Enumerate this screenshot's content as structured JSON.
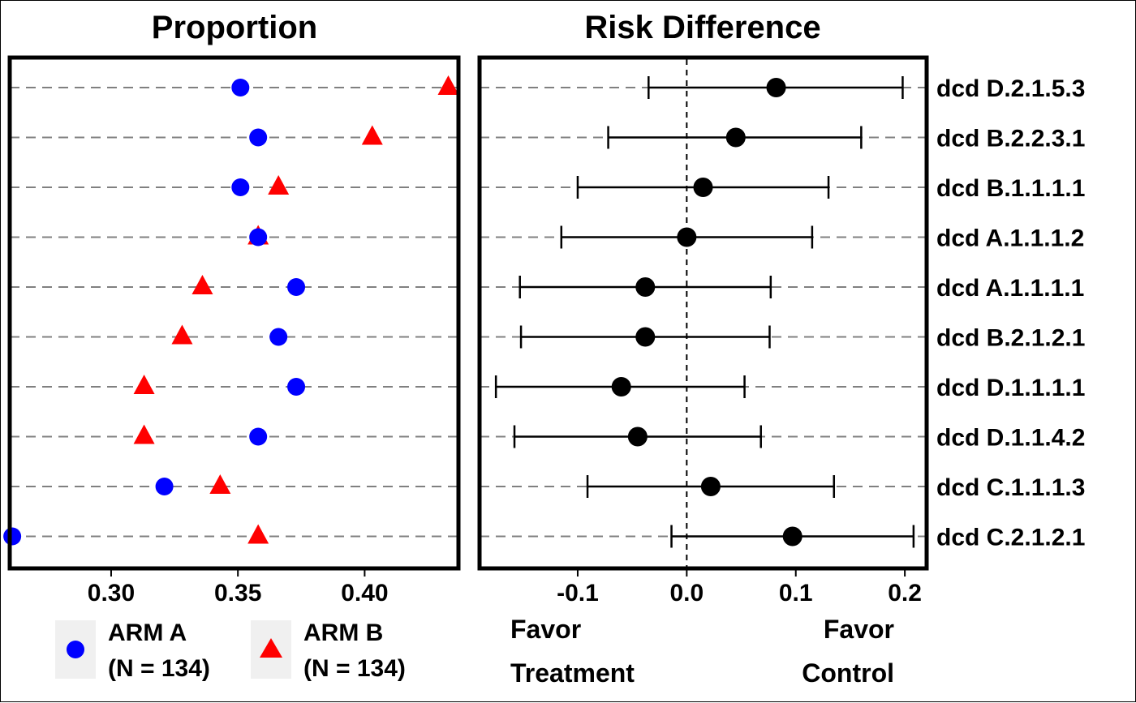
{
  "chart_data": [
    {
      "type": "scatter",
      "title": "Proportion",
      "xlim": [
        0.26,
        0.437
      ],
      "xticks": [
        "0.30",
        "0.35",
        "0.40"
      ],
      "xtick_values": [
        0.3,
        0.35,
        0.4
      ],
      "grid": "horizontal dashed",
      "categories": [
        "dcd D.2.1.5.3",
        "dcd B.2.2.3.1",
        "dcd B.1.1.1.1",
        "dcd A.1.1.1.2",
        "dcd A.1.1.1.1",
        "dcd B.2.1.2.1",
        "dcd D.1.1.1.1",
        "dcd D.1.1.4.2",
        "dcd C.1.1.1.3",
        "dcd C.2.1.2.1"
      ],
      "series": [
        {
          "name": "ARM A\n(N = 134)",
          "marker": "circle",
          "color": "#0000FF",
          "values": [
            0.351,
            0.358,
            0.351,
            0.358,
            0.373,
            0.366,
            0.373,
            0.358,
            0.321,
            0.261
          ]
        },
        {
          "name": "ARM B\n(N = 134)",
          "marker": "triangle",
          "color": "#FF0000",
          "values": [
            0.433,
            0.403,
            0.366,
            0.358,
            0.336,
            0.328,
            0.313,
            0.313,
            0.343,
            0.358
          ]
        }
      ],
      "legend": {
        "position": "bottom",
        "items": [
          {
            "line1": "ARM A",
            "line2": "(N = 134)"
          },
          {
            "line1": "ARM B",
            "line2": "(N = 134)"
          }
        ]
      }
    },
    {
      "type": "errorbar",
      "title": "Risk Difference",
      "xlim": [
        -0.19,
        0.22
      ],
      "xticks": [
        "-0.1",
        "0.0",
        "0.1",
        "0.2"
      ],
      "xtick_values": [
        -0.1,
        0.0,
        0.1,
        0.2
      ],
      "reference_line": 0.0,
      "grid": "horizontal dashed",
      "categories": [
        "dcd D.2.1.5.3",
        "dcd B.2.2.3.1",
        "dcd B.1.1.1.1",
        "dcd A.1.1.1.2",
        "dcd A.1.1.1.1",
        "dcd B.2.1.2.1",
        "dcd D.1.1.1.1",
        "dcd D.1.1.4.2",
        "dcd C.1.1.1.3",
        "dcd C.2.1.2.1"
      ],
      "estimate": [
        0.082,
        0.045,
        0.015,
        0.0,
        -0.038,
        -0.038,
        -0.06,
        -0.045,
        0.022,
        0.097
      ],
      "lower": [
        -0.035,
        -0.072,
        -0.1,
        -0.115,
        -0.153,
        -0.152,
        -0.175,
        -0.158,
        -0.091,
        -0.014
      ],
      "upper": [
        0.198,
        0.16,
        0.13,
        0.115,
        0.077,
        0.076,
        0.053,
        0.068,
        0.135,
        0.208
      ],
      "annotations": {
        "left": {
          "line1": "Favor",
          "line2": "Treatment"
        },
        "right": {
          "line1": "Favor",
          "line2": "Control"
        }
      }
    }
  ]
}
